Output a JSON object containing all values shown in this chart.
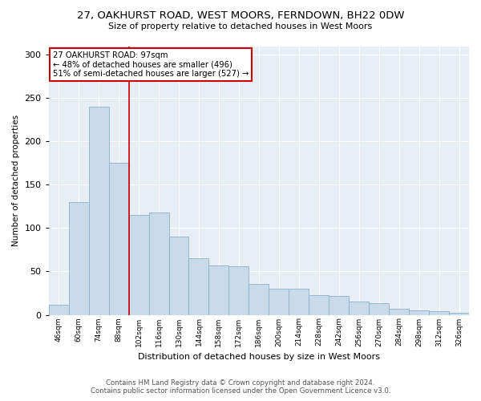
{
  "title": "27, OAKHURST ROAD, WEST MOORS, FERNDOWN, BH22 0DW",
  "subtitle": "Size of property relative to detached houses in West Moors",
  "xlabel": "Distribution of detached houses by size in West Moors",
  "ylabel": "Number of detached properties",
  "bar_color": "#c9daea",
  "bar_edge_color": "#8ab0cc",
  "background_color": "#e8eef6",
  "annotation_box_color": "#ffffff",
  "annotation_border_color": "#cc0000",
  "vline_color": "#cc0000",
  "annotation_text_line1": "27 OAKHURST ROAD: 97sqm",
  "annotation_text_line2": "← 48% of detached houses are smaller (496)",
  "annotation_text_line3": "51% of semi-detached houses are larger (527) →",
  "vline_x_index": 3.5,
  "categories": [
    "46sqm",
    "60sqm",
    "74sqm",
    "88sqm",
    "102sqm",
    "116sqm",
    "130sqm",
    "144sqm",
    "158sqm",
    "172sqm",
    "186sqm",
    "200sqm",
    "214sqm",
    "228sqm",
    "242sqm",
    "256sqm",
    "270sqm",
    "284sqm",
    "298sqm",
    "312sqm",
    "326sqm"
  ],
  "values": [
    12,
    130,
    240,
    175,
    115,
    118,
    90,
    65,
    57,
    56,
    36,
    30,
    30,
    23,
    22,
    15,
    13,
    7,
    5,
    4,
    2
  ],
  "ylim": [
    0,
    310
  ],
  "yticks": [
    0,
    50,
    100,
    150,
    200,
    250,
    300
  ],
  "footer_line1": "Contains HM Land Registry data © Crown copyright and database right 2024.",
  "footer_line2": "Contains public sector information licensed under the Open Government Licence v3.0."
}
